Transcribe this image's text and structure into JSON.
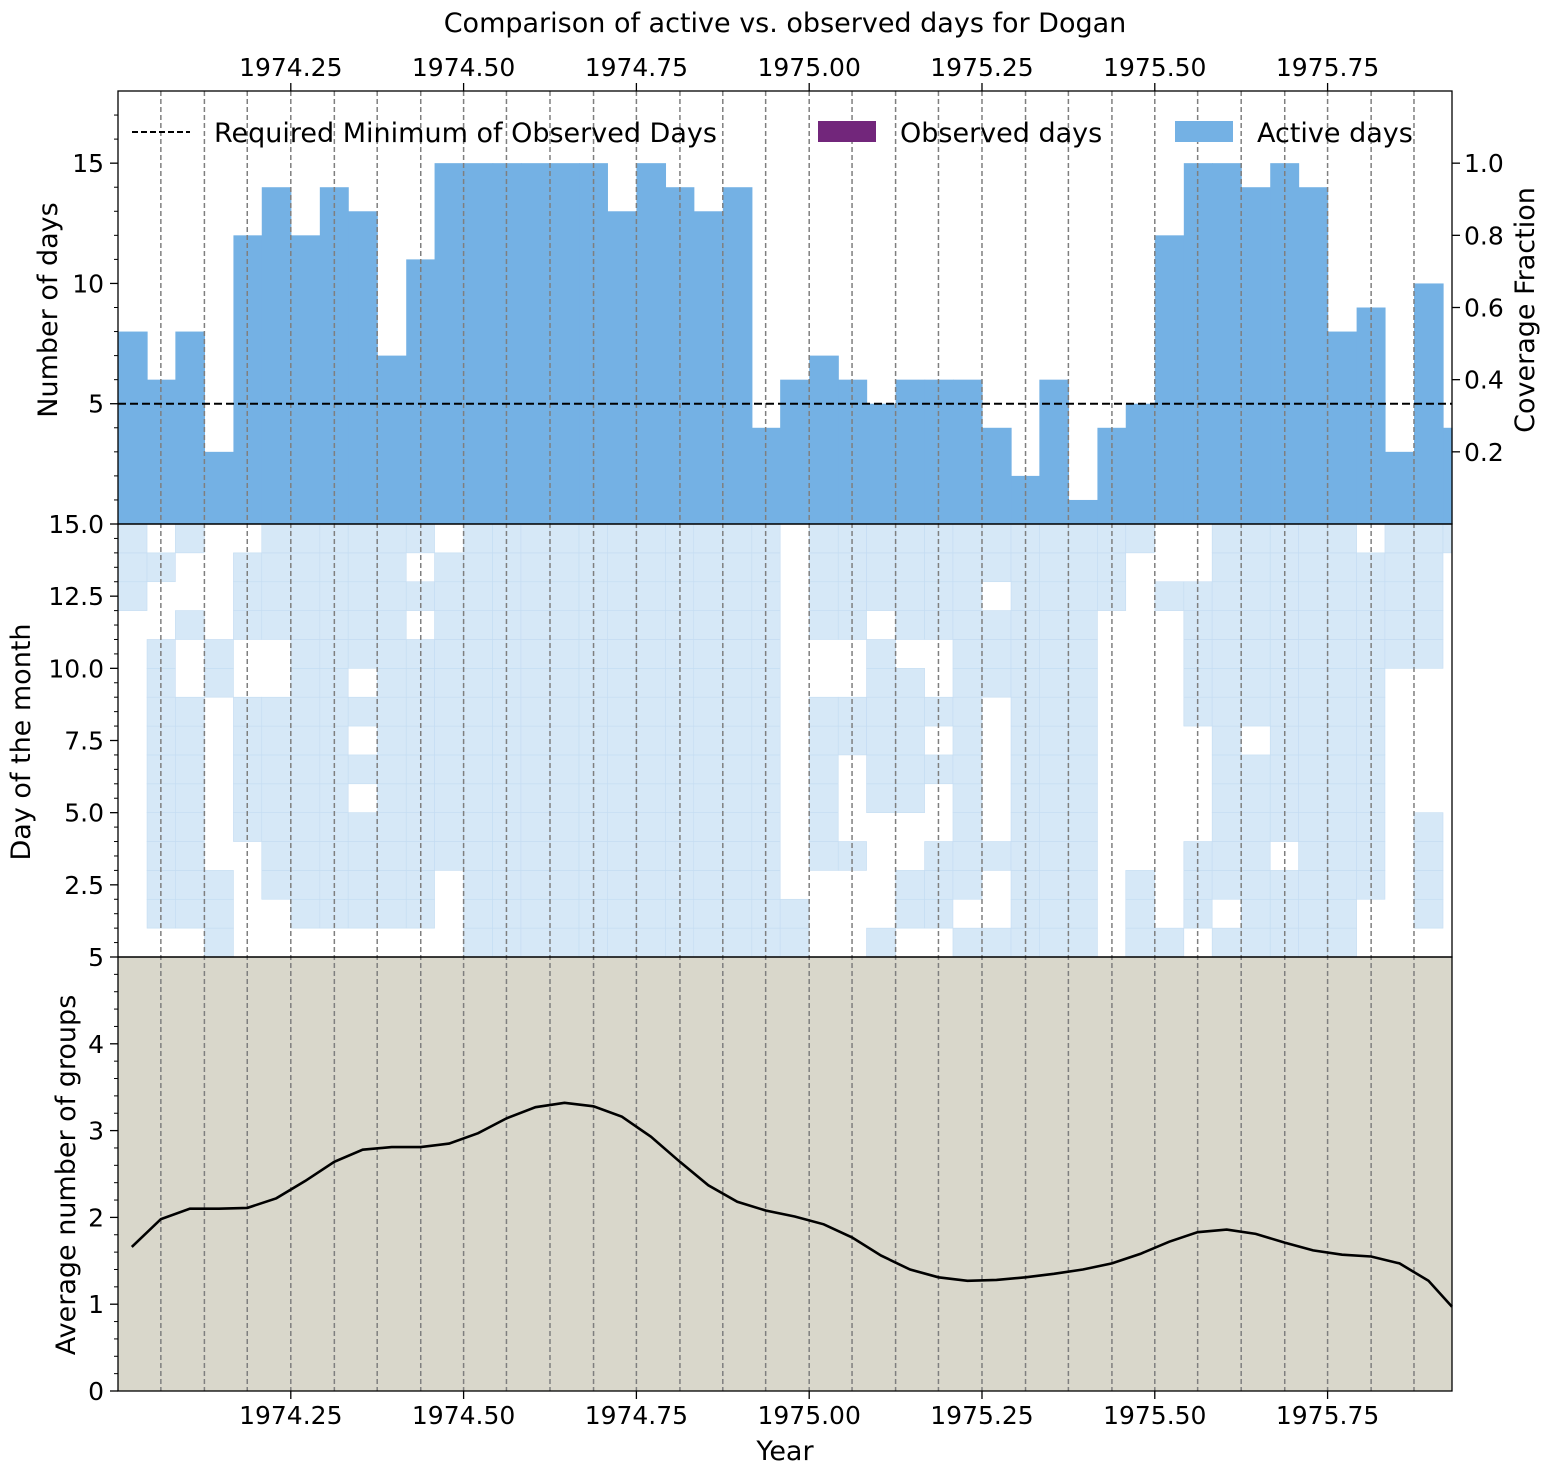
{
  "chart_data": {
    "title": "Comparison of active vs. observed days for Dogan",
    "xlabel": "Year",
    "x_ticks": [
      1974.25,
      1974.5,
      1974.75,
      1975.0,
      1975.25,
      1975.5,
      1975.75
    ],
    "x_tick_labels": [
      "1974.25",
      "1974.50",
      "1974.75",
      "1975.00",
      "1975.25",
      "1975.50",
      "1975.75"
    ],
    "xlim": [
      1974.0,
      1975.93
    ],
    "interval_boundaries": [
      1974.062,
      1974.125,
      1974.187,
      1974.25,
      1974.313,
      1974.375,
      1974.438,
      1974.5,
      1974.562,
      1974.625,
      1974.688,
      1974.75,
      1974.813,
      1974.875,
      1974.937,
      1975.0,
      1975.062,
      1975.125,
      1975.187,
      1975.25,
      1975.313,
      1975.375,
      1975.438,
      1975.5,
      1975.562,
      1975.625,
      1975.688,
      1975.75,
      1975.813,
      1975.875
    ],
    "panels": {
      "days": {
        "type": "bar",
        "ylabel": "Number of days",
        "ylabel_right": "Coverage Fraction",
        "ylim": [
          0,
          18
        ],
        "y_ticks": [
          5,
          10,
          15
        ],
        "y_ticks_right": [
          "0.2",
          "0.4",
          "0.6",
          "0.8",
          "1.0"
        ],
        "required_minimum": 5,
        "legend": {
          "placement": "top",
          "entries": [
            {
              "label": "Required Minimum of Observed Days",
              "kind": "dashed-line",
              "color": "#000000"
            },
            {
              "label": "Observed days",
              "kind": "patch",
              "color": "#72267b"
            },
            {
              "label": "Active days",
              "kind": "patch",
              "color": "#74b1e4"
            }
          ]
        },
        "month_starts": [
          1974.0,
          1974.042,
          1974.083,
          1974.125,
          1974.167,
          1974.208,
          1974.25,
          1974.292,
          1974.333,
          1974.375,
          1974.417,
          1974.458,
          1974.5,
          1974.542,
          1974.583,
          1974.625,
          1974.667,
          1974.708,
          1974.75,
          1974.792,
          1974.833,
          1974.875,
          1974.917,
          1974.958,
          1975.0,
          1975.042,
          1975.083,
          1975.125,
          1975.167,
          1975.208,
          1975.25,
          1975.292,
          1975.333,
          1975.375,
          1975.417,
          1975.458,
          1975.5,
          1975.542,
          1975.583,
          1975.625,
          1975.667,
          1975.708,
          1975.75,
          1975.792,
          1975.833,
          1975.875,
          1975.917
        ],
        "active_days": [
          8,
          6,
          8,
          3,
          12,
          14,
          12,
          14,
          13,
          7,
          11,
          15,
          15,
          15,
          15,
          15,
          15,
          13,
          15,
          14,
          13,
          14,
          4,
          6,
          7,
          6,
          5,
          6,
          6,
          6,
          4,
          2,
          6,
          1,
          4,
          5,
          12,
          15,
          15,
          14,
          15,
          14,
          8,
          9,
          3,
          10,
          4
        ],
        "observed_days": []
      },
      "calendar": {
        "type": "heatmap",
        "ylabel": "Day of the month",
        "ylim": [
          0,
          15
        ],
        "y_ticks": [
          2.5,
          5.0,
          7.5,
          10.0,
          12.5,
          15.0
        ],
        "y_tick_labels": [
          "2.5",
          "5.0",
          "7.5",
          "10.0",
          "12.5",
          "15.0"
        ],
        "bottom_tick_label": "5",
        "color": "#d6e8f7",
        "active_rows": [
          "000000000000111",
          "011111111110010",
          "011111111001001",
          "111000000110000",
          "000011111001110",
          "001111111001111",
          "011111111111111",
          "011111111111111",
          "011110101011111",
          "011111111111111",
          "011111111110101",
          "000111111111110",
          "111111111111111",
          "111111111111111",
          "111111111111111",
          "111111111111111",
          "111111111111111",
          "111111111111111",
          "111111111111111",
          "111111111111111",
          "111111111111111",
          "111111111111111",
          "111111111111111",
          "110000000000000",
          "000111111001111",
          "000100011001111",
          "100001111110111",
          "011001111101111",
          "011100101001111",
          "101111111111111",
          "100100000111011",
          "111111111111111",
          "111111111111111",
          "111111111111111",
          "000000000000111",
          "111000000000001",
          "100000000000100",
          "011100001111100",
          "101111111111111",
          "111111101111111",
          "111011111111111",
          "111111111111111",
          "111111111111111",
          "001111111111110",
          "000000000011111",
          "011110000011111",
          "000000000000001"
        ]
      },
      "groups": {
        "type": "line",
        "ylabel": "Average number of groups",
        "ylim": [
          0,
          5
        ],
        "y_ticks": [
          0,
          1,
          2,
          3,
          4,
          5
        ],
        "background": "#d9d7cb",
        "line_color": "#000000",
        "x": [
          1974.02,
          1974.062,
          1974.104,
          1974.146,
          1974.187,
          1974.229,
          1974.271,
          1974.313,
          1974.354,
          1974.396,
          1974.438,
          1974.479,
          1974.521,
          1974.562,
          1974.604,
          1974.646,
          1974.688,
          1974.729,
          1974.771,
          1974.813,
          1974.854,
          1974.896,
          1974.937,
          1974.979,
          1975.021,
          1975.062,
          1975.104,
          1975.146,
          1975.187,
          1975.229,
          1975.271,
          1975.313,
          1975.354,
          1975.396,
          1975.438,
          1975.479,
          1975.521,
          1975.562,
          1975.604,
          1975.646,
          1975.688,
          1975.729,
          1975.771,
          1975.813,
          1975.854,
          1975.896,
          1975.93
        ],
        "y": [
          1.66,
          1.98,
          2.1,
          2.1,
          2.11,
          2.22,
          2.42,
          2.64,
          2.78,
          2.81,
          2.81,
          2.85,
          2.97,
          3.14,
          3.27,
          3.32,
          3.28,
          3.16,
          2.93,
          2.64,
          2.37,
          2.18,
          2.08,
          2.01,
          1.92,
          1.77,
          1.56,
          1.4,
          1.31,
          1.27,
          1.28,
          1.31,
          1.35,
          1.4,
          1.47,
          1.58,
          1.72,
          1.83,
          1.86,
          1.81,
          1.71,
          1.62,
          1.57,
          1.55,
          1.47,
          1.27,
          0.97
        ]
      }
    }
  }
}
